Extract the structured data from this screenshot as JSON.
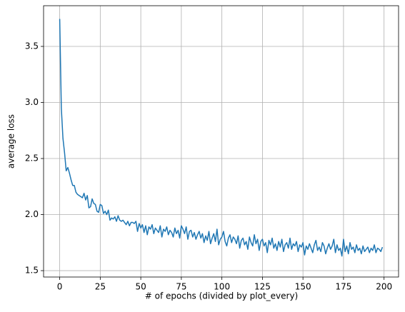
{
  "chart_data": {
    "type": "line",
    "xlabel": "# of epochs (divided by plot_every)",
    "ylabel": "average loss",
    "x": [
      0,
      1,
      2,
      3,
      4,
      5,
      6,
      7,
      8,
      9,
      10,
      11,
      12,
      13,
      14,
      15,
      16,
      17,
      18,
      19,
      20,
      21,
      22,
      23,
      24,
      25,
      26,
      27,
      28,
      29,
      30,
      31,
      32,
      33,
      34,
      35,
      36,
      37,
      38,
      39,
      40,
      41,
      42,
      43,
      44,
      45,
      46,
      47,
      48,
      49,
      50,
      51,
      52,
      53,
      54,
      55,
      56,
      57,
      58,
      59,
      60,
      61,
      62,
      63,
      64,
      65,
      66,
      67,
      68,
      69,
      70,
      71,
      72,
      73,
      74,
      75,
      76,
      77,
      78,
      79,
      80,
      81,
      82,
      83,
      84,
      85,
      86,
      87,
      88,
      89,
      90,
      91,
      92,
      93,
      94,
      95,
      96,
      97,
      98,
      99,
      100,
      101,
      102,
      103,
      104,
      105,
      106,
      107,
      108,
      109,
      110,
      111,
      112,
      113,
      114,
      115,
      116,
      117,
      118,
      119,
      120,
      121,
      122,
      123,
      124,
      125,
      126,
      127,
      128,
      129,
      130,
      131,
      132,
      133,
      134,
      135,
      136,
      137,
      138,
      139,
      140,
      141,
      142,
      143,
      144,
      145,
      146,
      147,
      148,
      149,
      150,
      151,
      152,
      153,
      154,
      155,
      156,
      157,
      158,
      159,
      160,
      161,
      162,
      163,
      164,
      165,
      166,
      167,
      168,
      169,
      170,
      171,
      172,
      173,
      174,
      175,
      176,
      177,
      178,
      179,
      180,
      181,
      182,
      183,
      184,
      185,
      186,
      187,
      188,
      189,
      190,
      191,
      192,
      193,
      194,
      195,
      196,
      197,
      198,
      199
    ],
    "series": [
      {
        "name": "average loss",
        "color": "#1f77b4",
        "values": [
          3.745,
          2.95,
          2.68,
          2.55,
          2.39,
          2.42,
          2.37,
          2.31,
          2.26,
          2.26,
          2.2,
          2.18,
          2.17,
          2.16,
          2.15,
          2.19,
          2.13,
          2.17,
          2.06,
          2.07,
          2.14,
          2.1,
          2.09,
          2.03,
          2.02,
          2.09,
          2.08,
          2.01,
          2.03,
          2.0,
          2.04,
          1.95,
          1.97,
          1.96,
          1.98,
          1.94,
          1.99,
          1.95,
          1.94,
          1.95,
          1.93,
          1.91,
          1.94,
          1.9,
          1.93,
          1.93,
          1.92,
          1.94,
          1.85,
          1.92,
          1.88,
          1.91,
          1.84,
          1.9,
          1.82,
          1.89,
          1.87,
          1.91,
          1.83,
          1.88,
          1.86,
          1.84,
          1.9,
          1.8,
          1.87,
          1.85,
          1.89,
          1.82,
          1.86,
          1.84,
          1.8,
          1.88,
          1.83,
          1.86,
          1.79,
          1.9,
          1.87,
          1.83,
          1.89,
          1.78,
          1.85,
          1.86,
          1.8,
          1.84,
          1.78,
          1.82,
          1.85,
          1.79,
          1.83,
          1.75,
          1.81,
          1.77,
          1.85,
          1.74,
          1.79,
          1.83,
          1.76,
          1.87,
          1.73,
          1.78,
          1.8,
          1.85,
          1.76,
          1.72,
          1.79,
          1.82,
          1.75,
          1.8,
          1.78,
          1.74,
          1.81,
          1.7,
          1.77,
          1.79,
          1.73,
          1.76,
          1.69,
          1.8,
          1.75,
          1.72,
          1.82,
          1.74,
          1.78,
          1.68,
          1.76,
          1.78,
          1.72,
          1.75,
          1.66,
          1.77,
          1.73,
          1.79,
          1.7,
          1.74,
          1.68,
          1.76,
          1.71,
          1.78,
          1.67,
          1.73,
          1.75,
          1.7,
          1.79,
          1.69,
          1.74,
          1.72,
          1.76,
          1.67,
          1.73,
          1.71,
          1.75,
          1.64,
          1.72,
          1.69,
          1.74,
          1.7,
          1.66,
          1.73,
          1.77,
          1.68,
          1.71,
          1.67,
          1.75,
          1.72,
          1.65,
          1.7,
          1.74,
          1.69,
          1.72,
          1.78,
          1.66,
          1.73,
          1.68,
          1.7,
          1.63,
          1.78,
          1.67,
          1.72,
          1.65,
          1.75,
          1.69,
          1.71,
          1.66,
          1.73,
          1.68,
          1.7,
          1.65,
          1.72,
          1.67,
          1.69,
          1.71,
          1.66,
          1.7,
          1.68,
          1.73,
          1.66,
          1.7,
          1.69,
          1.67,
          1.71
        ]
      }
    ],
    "xlim": [
      -9.95,
      208.95
    ],
    "ylim": [
      1.443,
      3.863
    ],
    "xticks": [
      0,
      25,
      50,
      75,
      100,
      125,
      150,
      175,
      200
    ],
    "yticks": [
      {
        "value": 1.5,
        "label": "1.5"
      },
      {
        "value": 2,
        "label": "2.0"
      },
      {
        "value": 2.5,
        "label": "2.5"
      },
      {
        "value": 3,
        "label": "3.0"
      },
      {
        "value": 3.5,
        "label": "3.5"
      }
    ],
    "grid": true
  }
}
